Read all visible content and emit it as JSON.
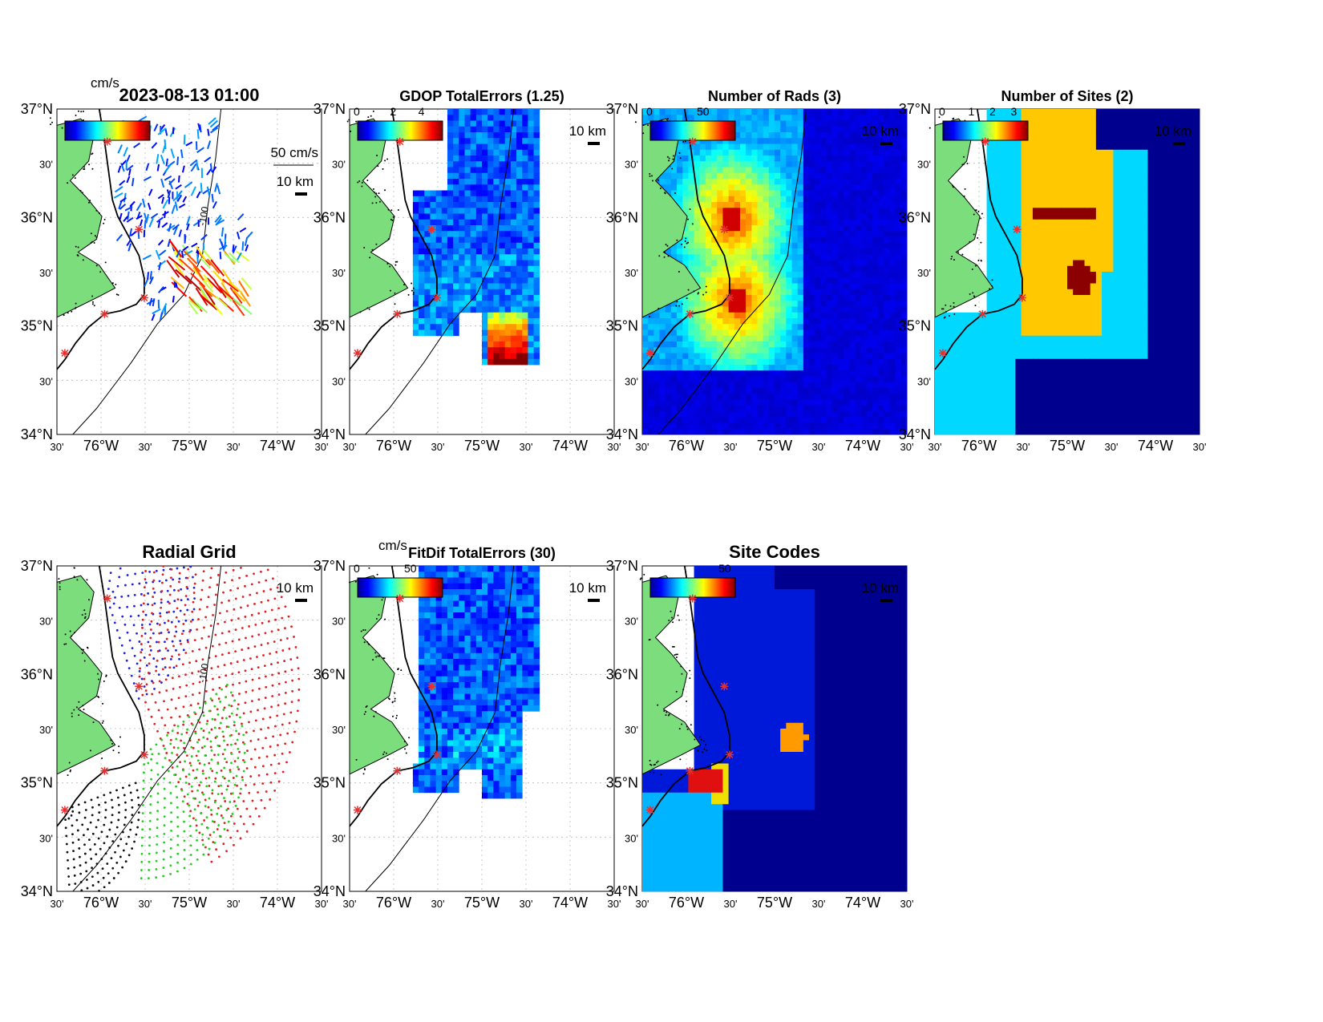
{
  "figure": {
    "timestamp": "2023-08-13 01:00",
    "lat_labels": [
      "37°N",
      "30'",
      "36°N",
      "30'",
      "35°N",
      "30'",
      "34°N"
    ],
    "lon_labels": [
      "30'",
      "76°W",
      "30'",
      "75°W",
      "30'",
      "74°W",
      "30'"
    ],
    "scale_label": "10 km",
    "vector_scale_label": "50 cm/s",
    "units_label": "cm/s",
    "contour_label": "-100",
    "contour_label_mid": "-25",
    "colors": {
      "land": "#7cdd7c",
      "ocean_bg": "#ffffff",
      "deep_blue": "#00008f",
      "site_marker": "#e53030"
    }
  },
  "panels": [
    {
      "id": "total-currents",
      "title": "2023-08-13 01:00",
      "colorbar_ticks": [],
      "type": "vectors"
    },
    {
      "id": "gdop",
      "title": "GDOP TotalErrors (1.25)",
      "colorbar_ticks": [
        "0",
        "2",
        "4"
      ],
      "type": "heatmap"
    },
    {
      "id": "num-rads",
      "title": "Number of Rads (3)",
      "colorbar_ticks": [
        "0",
        "50"
      ],
      "type": "heatmap"
    },
    {
      "id": "num-sites",
      "title": "Number of Sites (2)",
      "colorbar_ticks": [
        "0",
        "1",
        "2",
        "3"
      ],
      "type": "categorical"
    },
    {
      "id": "radial-grid",
      "title": "Radial Grid",
      "colorbar_ticks": [],
      "type": "grid"
    },
    {
      "id": "fitdif",
      "title": "FitDif TotalErrors (30)",
      "colorbar_ticks": [
        "0",
        "50"
      ],
      "type": "heatmap"
    },
    {
      "id": "site-codes",
      "title": "Site Codes",
      "colorbar_ticks": [
        "50"
      ],
      "type": "categorical"
    }
  ],
  "sites": [
    {
      "lon": -75.75,
      "lat": 36.43
    },
    {
      "lon": -75.52,
      "lat": 35.91
    },
    {
      "lon": -75.5,
      "lat": 35.5
    },
    {
      "lon": -76.0,
      "lat": 35.2
    },
    {
      "lon": -76.42,
      "lat": 34.76
    }
  ],
  "chart_data": [
    {
      "type": "heatmap",
      "title": "GDOP TotalErrors (1.25)",
      "colorbar_range": [
        0,
        4
      ],
      "xlim": [
        -76.5,
        -73.5
      ],
      "ylim": [
        34,
        37
      ]
    },
    {
      "type": "heatmap",
      "title": "Number of Rads (3)",
      "colorbar_range": [
        0,
        60
      ],
      "xlim": [
        -76.5,
        -73.5
      ],
      "ylim": [
        34,
        37
      ]
    },
    {
      "type": "heatmap",
      "title": "Number of Sites (2)",
      "colorbar_range": [
        0,
        3
      ],
      "xlim": [
        -76.5,
        -73.5
      ],
      "ylim": [
        34,
        37
      ]
    },
    {
      "type": "heatmap",
      "title": "FitDif TotalErrors (30)",
      "colorbar_range": [
        0,
        60
      ],
      "xlim": [
        -76.5,
        -73.5
      ],
      "ylim": [
        34,
        37
      ]
    },
    {
      "type": "heatmap",
      "title": "Site Codes",
      "colorbar_range": [
        0,
        60
      ],
      "xlim": [
        -76.5,
        -73.5
      ],
      "ylim": [
        34,
        37
      ]
    }
  ]
}
